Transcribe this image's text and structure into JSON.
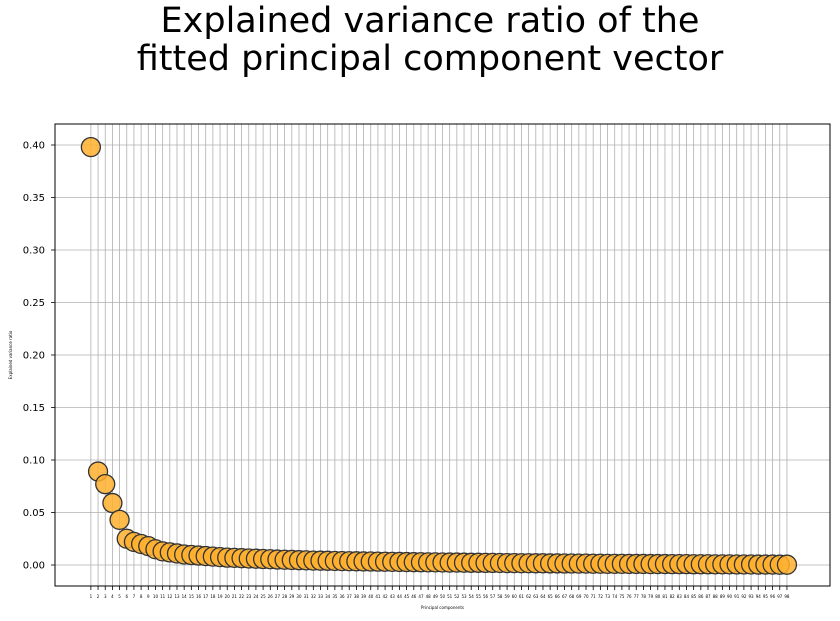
{
  "chart_data": {
    "type": "scatter",
    "title_lines": [
      "Explained variance ratio of the",
      "fitted principal component vector"
    ],
    "xlabel": "Principal components",
    "ylabel": "Explained variance ratio",
    "x": [
      1,
      2,
      3,
      4,
      5,
      6,
      7,
      8,
      9,
      10,
      11,
      12,
      13,
      14,
      15,
      16,
      17,
      18,
      19,
      20,
      21,
      22,
      23,
      24,
      25,
      26,
      27,
      28,
      29,
      30,
      31,
      32,
      33,
      34,
      35,
      36,
      37,
      38,
      39,
      40,
      41,
      42,
      43,
      44,
      45,
      46,
      47,
      48,
      49,
      50,
      51,
      52,
      53,
      54,
      55,
      56,
      57,
      58,
      59,
      60,
      61,
      62,
      63,
      64,
      65,
      66,
      67,
      68,
      69,
      70,
      71,
      72,
      73,
      74,
      75,
      76,
      77,
      78,
      79,
      80,
      81,
      82,
      83,
      84,
      85,
      86,
      87,
      88,
      89,
      90,
      91,
      92,
      93,
      94,
      95,
      96,
      97,
      98
    ],
    "values": [
      0.398,
      0.089,
      0.077,
      0.059,
      0.043,
      0.025,
      0.022,
      0.02,
      0.018,
      0.015,
      0.013,
      0.012,
      0.011,
      0.01,
      0.0095,
      0.009,
      0.0085,
      0.008,
      0.0075,
      0.007,
      0.0068,
      0.0065,
      0.0062,
      0.006,
      0.0057,
      0.0055,
      0.0052,
      0.005,
      0.0048,
      0.0046,
      0.0044,
      0.0042,
      0.0041,
      0.004,
      0.0038,
      0.0037,
      0.0036,
      0.0035,
      0.0034,
      0.0033,
      0.0032,
      0.0031,
      0.003,
      0.0029,
      0.0028,
      0.0027,
      0.0026,
      0.0025,
      0.0025,
      0.0024,
      0.0023,
      0.0023,
      0.0022,
      0.0021,
      0.0021,
      0.002,
      0.002,
      0.0019,
      0.0018,
      0.0018,
      0.0017,
      0.0017,
      0.0016,
      0.0016,
      0.0015,
      0.0015,
      0.0014,
      0.0014,
      0.0013,
      0.0013,
      0.0012,
      0.0012,
      0.0011,
      0.0011,
      0.0011,
      0.001,
      0.001,
      0.001,
      0.0009,
      0.0009,
      0.0009,
      0.0008,
      0.0008,
      0.0008,
      0.0007,
      0.0007,
      0.0007,
      0.0006,
      0.0006,
      0.0006,
      0.0005,
      0.0005,
      0.0005,
      0.0004,
      0.0004,
      0.0004,
      0.0003,
      0.0003
    ],
    "xlim": [
      -4,
      104
    ],
    "ylim": [
      -0.02,
      0.42
    ],
    "yticks": [
      0.0,
      0.05,
      0.1,
      0.15,
      0.2,
      0.25,
      0.3,
      0.35,
      0.4
    ],
    "ytick_labels": [
      "0.00",
      "0.05",
      "0.10",
      "0.15",
      "0.20",
      "0.25",
      "0.30",
      "0.35",
      "0.40"
    ],
    "grid": true,
    "marker_color": "#FFB02E",
    "marker_edge_color": "#333333"
  }
}
